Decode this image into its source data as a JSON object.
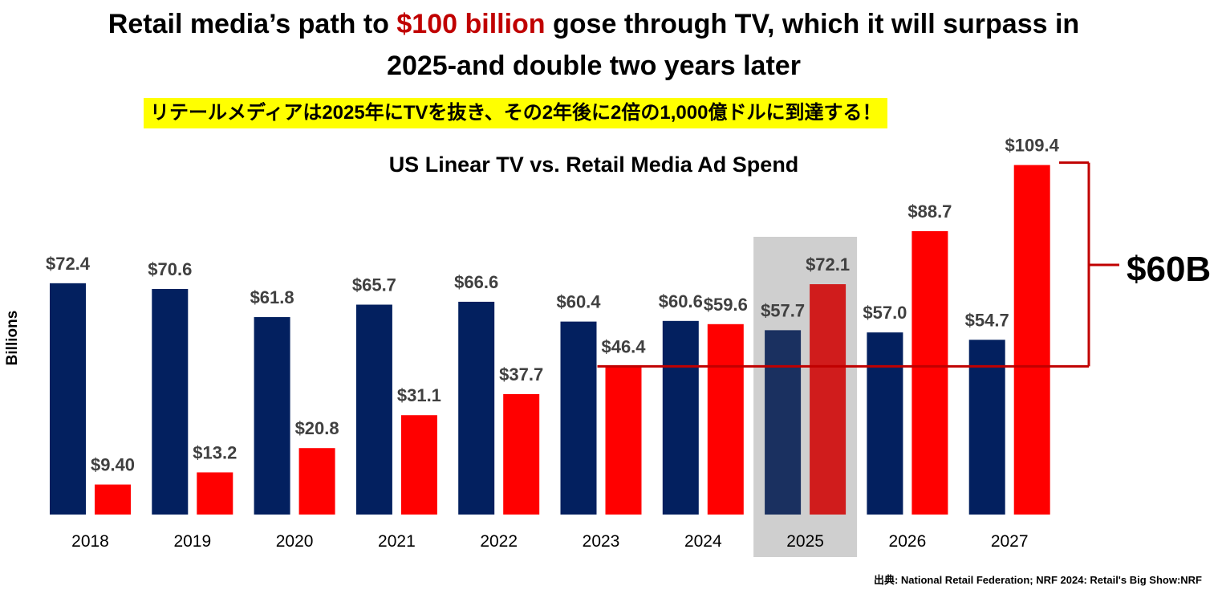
{
  "headline": {
    "line1_pre": "Retail media’s path to ",
    "line1_accent": "$100 billion",
    "line1_post": " gose through TV, which it will surpass in",
    "line2": "2025-and double two years later"
  },
  "subtitle_jp": "リテールメディアは2025年にTVを抜き、その2年後に2倍の1,000億ドルに到達する！",
  "source": "出典: National Retail Federation; NRF 2024: Retail's Big Show:NRF",
  "colors": {
    "tv": "#03205f",
    "retail": "#ff0000",
    "tv_highlight": "#1a3060",
    "retail_highlight": "#d01c1c",
    "highlight_band": "#cfcfcf",
    "bracket": "#c00000",
    "label": "#404040"
  },
  "chart_data": {
    "type": "bar",
    "title": "US Linear TV vs. Retail Media Ad Spend",
    "ylabel": "Billions",
    "xlabel": "",
    "categories": [
      "2018",
      "2019",
      "2020",
      "2021",
      "2022",
      "2023",
      "2024",
      "2025",
      "2026",
      "2027"
    ],
    "series": [
      {
        "key": "tv",
        "values": [
          72.4,
          70.6,
          61.8,
          65.7,
          66.6,
          60.4,
          60.6,
          57.7,
          57.0,
          54.7
        ],
        "labels": [
          "$72.4",
          "$70.6",
          "$61.8",
          "$65.7",
          "$66.6",
          "$60.4",
          "$60.6",
          "$57.7",
          "$57.0",
          "$54.7"
        ]
      },
      {
        "key": "retail",
        "values": [
          9.4,
          13.2,
          20.8,
          31.1,
          37.7,
          46.4,
          59.6,
          72.1,
          88.7,
          109.4
        ],
        "labels": [
          "$9.40",
          "$13.2",
          "$20.8",
          "$31.1",
          "$37.7",
          "$46.4",
          "$59.6",
          "$72.1",
          "$88.7",
          "$109.4"
        ]
      }
    ],
    "highlight_category": "2025",
    "ylim": [
      0,
      115
    ],
    "grid": false,
    "legend": "none",
    "annotation": {
      "label": "$60B",
      "from_value": 46.4,
      "to_value": 109.4
    }
  }
}
